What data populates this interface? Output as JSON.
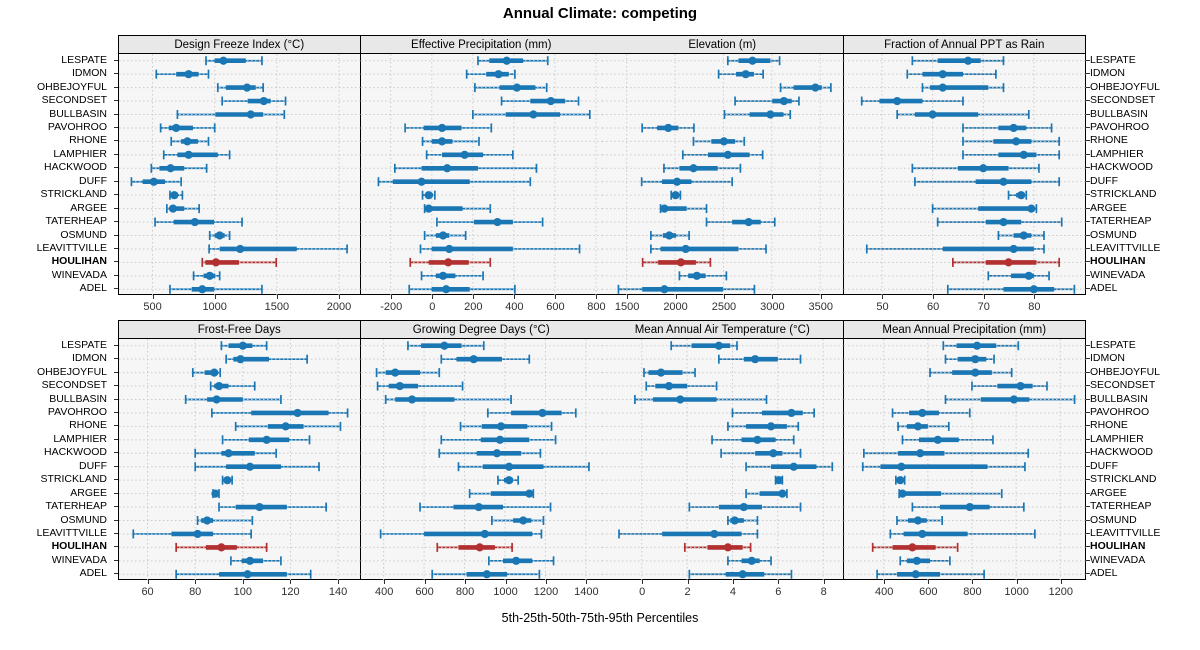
{
  "title": "Annual Climate: competing",
  "xlabel": "5th-25th-50th-75th-95th Percentiles",
  "highlight_site": "HOULIHAN",
  "colors": {
    "series": "#1b76b4",
    "highlight": "#b23030",
    "panel_bg": "#f6f6f6",
    "grid": "#cbcbcb",
    "strip_bg": "#e8e8e8",
    "border": "#000000",
    "tick_text": "#303030"
  },
  "sites": [
    "LESPATE",
    "IDMON",
    "OHBEJOYFUL",
    "SECONDSET",
    "BULLBASIN",
    "PAVOHROO",
    "RHONE",
    "LAMPHIER",
    "HACKWOOD",
    "DUFF",
    "STRICKLAND",
    "ARGEE",
    "TATERHEAP",
    "OSMUND",
    "LEAVITTVILLE",
    "HOULIHAN",
    "WINEVADA",
    "ADEL"
  ],
  "chart_data": {
    "type": "dotplot-interval",
    "percentiles": [
      5,
      25,
      50,
      75,
      95
    ],
    "grid": "dotted",
    "layout": "2 rows x 4 columns of panels, shared site axis",
    "panels": [
      {
        "title": "Design Freeze Index (°C)",
        "ticks": [
          500,
          1000,
          1500,
          2000
        ],
        "xlim": [
          230,
          2165
        ],
        "values": [
          [
            930,
            1000,
            1070,
            1250,
            1380
          ],
          [
            530,
            690,
            790,
            870,
            950
          ],
          [
            1025,
            1090,
            1260,
            1330,
            1390
          ],
          [
            1060,
            1265,
            1395,
            1450,
            1570
          ],
          [
            700,
            1005,
            1290,
            1390,
            1560
          ],
          [
            565,
            630,
            690,
            825,
            1000
          ],
          [
            650,
            730,
            780,
            865,
            950
          ],
          [
            590,
            700,
            790,
            1025,
            1120
          ],
          [
            490,
            555,
            645,
            755,
            935
          ],
          [
            330,
            420,
            510,
            600,
            730
          ],
          [
            640,
            655,
            675,
            705,
            740
          ],
          [
            615,
            635,
            665,
            755,
            875
          ],
          [
            520,
            670,
            840,
            995,
            1220
          ],
          [
            960,
            1000,
            1040,
            1080,
            1120
          ],
          [
            955,
            1040,
            1205,
            1660,
            2065
          ],
          [
            900,
            925,
            1010,
            1195,
            1495
          ],
          [
            830,
            910,
            960,
            1005,
            1040
          ],
          [
            640,
            815,
            900,
            995,
            1380
          ]
        ]
      },
      {
        "title": "Effective Precipitation (mm)",
        "ticks": [
          -200,
          0,
          200,
          400,
          600,
          800
        ],
        "xlim": [
          -345,
          827
        ],
        "values": [
          [
            225,
            280,
            365,
            445,
            565
          ],
          [
            170,
            265,
            325,
            375,
            405
          ],
          [
            210,
            330,
            415,
            505,
            560
          ],
          [
            340,
            480,
            580,
            650,
            715
          ],
          [
            200,
            360,
            495,
            625,
            770
          ],
          [
            -130,
            -40,
            50,
            145,
            290
          ],
          [
            -45,
            0,
            50,
            100,
            230
          ],
          [
            -25,
            50,
            160,
            250,
            395
          ],
          [
            -180,
            -50,
            75,
            225,
            510
          ],
          [
            -260,
            -190,
            -50,
            185,
            480
          ],
          [
            -45,
            -30,
            -15,
            5,
            15
          ],
          [
            -35,
            -25,
            -15,
            150,
            285
          ],
          [
            25,
            205,
            320,
            395,
            540
          ],
          [
            -35,
            20,
            55,
            85,
            165
          ],
          [
            -55,
            0,
            85,
            395,
            720
          ],
          [
            -105,
            -15,
            80,
            180,
            285
          ],
          [
            -50,
            20,
            55,
            115,
            250
          ],
          [
            -110,
            0,
            70,
            185,
            405
          ]
        ]
      },
      {
        "title": "Elevation (m)",
        "ticks": [
          1500,
          2000,
          2500,
          3000,
          3500
        ],
        "xlim": [
          1245,
          3730
        ],
        "values": [
          [
            2545,
            2655,
            2800,
            2985,
            3080
          ],
          [
            2450,
            2630,
            2730,
            2815,
            2910
          ],
          [
            3090,
            3225,
            3450,
            3515,
            3610
          ],
          [
            2620,
            3005,
            3125,
            3205,
            3280
          ],
          [
            2510,
            2770,
            2985,
            3120,
            3190
          ],
          [
            1660,
            1815,
            1930,
            2035,
            2195
          ],
          [
            2190,
            2375,
            2505,
            2620,
            2715
          ],
          [
            2080,
            2340,
            2545,
            2770,
            2905
          ],
          [
            1885,
            2045,
            2190,
            2440,
            2675
          ],
          [
            1655,
            1865,
            2020,
            2170,
            2590
          ],
          [
            1960,
            1990,
            2005,
            2025,
            2055
          ],
          [
            1850,
            1865,
            1890,
            2120,
            2325
          ],
          [
            2325,
            2590,
            2760,
            2885,
            3030
          ],
          [
            1750,
            1875,
            1940,
            2010,
            2145
          ],
          [
            1750,
            1850,
            2110,
            2655,
            2940
          ],
          [
            1665,
            1825,
            2060,
            2215,
            2365
          ],
          [
            2045,
            2135,
            2225,
            2315,
            2530
          ],
          [
            1415,
            1660,
            1890,
            2495,
            2820
          ]
        ]
      },
      {
        "title": "Fraction of Annual PPT as Rain",
        "ticks": [
          50,
          60,
          70,
          80
        ],
        "xlim": [
          42.5,
          90
        ],
        "values": [
          [
            56,
            61,
            67,
            69.5,
            74
          ],
          [
            55,
            58,
            62,
            66,
            72.5
          ],
          [
            58,
            59.5,
            62,
            71,
            74
          ],
          [
            46,
            49.5,
            53,
            58,
            66
          ],
          [
            53,
            56.5,
            60,
            69,
            79
          ],
          [
            66,
            73,
            76,
            78.5,
            83.5
          ],
          [
            66,
            72,
            76.5,
            79.5,
            85
          ],
          [
            66,
            73,
            78,
            80.5,
            85
          ],
          [
            56,
            65,
            70,
            75,
            81
          ],
          [
            56.5,
            68.5,
            74,
            79.5,
            85
          ],
          [
            75,
            76.5,
            77.5,
            78,
            78.5
          ],
          [
            60,
            69,
            79.5,
            80,
            80.5
          ],
          [
            61,
            70.5,
            74,
            77.5,
            85.5
          ],
          [
            73,
            76,
            78,
            79.5,
            82
          ],
          [
            47,
            62,
            76,
            80,
            82
          ],
          [
            64,
            70.5,
            75,
            80.5,
            85
          ],
          [
            71,
            75.5,
            79,
            80,
            83
          ],
          [
            63,
            74,
            80,
            84,
            88
          ]
        ]
      },
      {
        "title": "Frost-Free Days",
        "ticks": [
          60,
          80,
          100,
          120,
          140
        ],
        "xlim": [
          48,
          149
        ],
        "values": [
          [
            91,
            94,
            100,
            104,
            110
          ],
          [
            93,
            96,
            99,
            111,
            127
          ],
          [
            79,
            84,
            88,
            89.5,
            90.5
          ],
          [
            86.5,
            88,
            90,
            94,
            105
          ],
          [
            76,
            85,
            89,
            100,
            116
          ],
          [
            87,
            103.5,
            123,
            136,
            144
          ],
          [
            97,
            110.5,
            118,
            125.5,
            141
          ],
          [
            91.5,
            102.5,
            110,
            119.5,
            128
          ],
          [
            80,
            91,
            94,
            105,
            114
          ],
          [
            80,
            93,
            103,
            116,
            132
          ],
          [
            91.5,
            92.5,
            93.5,
            94.5,
            95.5
          ],
          [
            87.5,
            88,
            88.5,
            89.5,
            90
          ],
          [
            90,
            97,
            107,
            118.5,
            135
          ],
          [
            81,
            82.5,
            85,
            87.5,
            104
          ],
          [
            54,
            70,
            81,
            87.5,
            103.5
          ],
          [
            72,
            84.5,
            91,
            97.5,
            110
          ],
          [
            95,
            99.5,
            103,
            108.5,
            116
          ],
          [
            72,
            90,
            102,
            118.5,
            128.5
          ]
        ]
      },
      {
        "title": "Growing Degree Days (°C)",
        "ticks": [
          400,
          600,
          800,
          1000,
          1200,
          1400
        ],
        "xlim": [
          288,
          1477
        ],
        "values": [
          [
            520,
            585,
            700,
            785,
            895
          ],
          [
            685,
            760,
            845,
            985,
            1120
          ],
          [
            365,
            410,
            457,
            580,
            675
          ],
          [
            370,
            425,
            480,
            570,
            790
          ],
          [
            410,
            457,
            540,
            750,
            1030
          ],
          [
            915,
            1030,
            1185,
            1280,
            1350
          ],
          [
            780,
            885,
            980,
            1110,
            1230
          ],
          [
            685,
            880,
            975,
            1120,
            1250
          ],
          [
            675,
            860,
            960,
            1080,
            1175
          ],
          [
            770,
            890,
            1020,
            1190,
            1415
          ],
          [
            965,
            995,
            1020,
            1040,
            1065
          ],
          [
            825,
            930,
            1120,
            1130,
            1140
          ],
          [
            580,
            745,
            870,
            990,
            1225
          ],
          [
            935,
            1040,
            1090,
            1130,
            1190
          ],
          [
            385,
            600,
            900,
            1135,
            1180
          ],
          [
            665,
            770,
            875,
            950,
            1035
          ],
          [
            920,
            990,
            1055,
            1135,
            1240
          ],
          [
            640,
            810,
            910,
            1010,
            1170
          ]
        ]
      },
      {
        "title": "Mean Annual Air Temperature (°C)",
        "ticks": [
          0,
          2,
          4,
          6,
          8
        ],
        "xlim": [
          -1.75,
          8.85
        ],
        "values": [
          [
            1.3,
            2.2,
            3.4,
            3.9,
            4.2
          ],
          [
            3.4,
            4.5,
            5.0,
            6.0,
            7.0
          ],
          [
            0.1,
            0.3,
            0.85,
            1.8,
            2.35
          ],
          [
            0.2,
            0.6,
            1.2,
            2.0,
            3.3
          ],
          [
            -0.3,
            0.5,
            1.7,
            3.3,
            5.5
          ],
          [
            4.0,
            5.3,
            6.6,
            7.1,
            7.6
          ],
          [
            3.8,
            4.6,
            5.7,
            6.4,
            6.9
          ],
          [
            3.1,
            4.4,
            5.1,
            5.9,
            6.7
          ],
          [
            3.5,
            5.0,
            5.8,
            6.2,
            7.0
          ],
          [
            4.6,
            5.7,
            6.7,
            7.7,
            8.4
          ],
          [
            5.9,
            5.95,
            6.05,
            6.15,
            6.2
          ],
          [
            4.6,
            5.2,
            6.2,
            6.3,
            6.4
          ],
          [
            2.1,
            3.4,
            4.5,
            5.3,
            7.0
          ],
          [
            3.8,
            3.9,
            4.1,
            4.5,
            5.1
          ],
          [
            -1.0,
            0.9,
            3.2,
            4.4,
            5.1
          ],
          [
            1.9,
            2.9,
            3.8,
            4.45,
            4.8
          ],
          [
            3.8,
            4.4,
            4.85,
            5.2,
            5.7
          ],
          [
            2.1,
            3.7,
            4.45,
            5.4,
            6.6
          ]
        ]
      },
      {
        "title": "Mean Annual Precipitation (mm)",
        "ticks": [
          400,
          600,
          800,
          1000,
          1200
        ],
        "xlim": [
          220,
          1310
        ],
        "values": [
          [
            670,
            730,
            823,
            910,
            1010
          ],
          [
            680,
            735,
            815,
            865,
            900
          ],
          [
            610,
            710,
            815,
            890,
            980
          ],
          [
            800,
            915,
            1020,
            1075,
            1140
          ],
          [
            680,
            840,
            990,
            1060,
            1265
          ],
          [
            440,
            515,
            575,
            650,
            790
          ],
          [
            465,
            505,
            555,
            600,
            695
          ],
          [
            485,
            560,
            645,
            740,
            895
          ],
          [
            310,
            465,
            565,
            675,
            1055
          ],
          [
            305,
            385,
            480,
            870,
            1040
          ],
          [
            455,
            465,
            475,
            487,
            495
          ],
          [
            470,
            475,
            485,
            660,
            935
          ],
          [
            530,
            655,
            790,
            880,
            1035
          ],
          [
            460,
            510,
            555,
            595,
            665
          ],
          [
            430,
            490,
            575,
            780,
            1085
          ],
          [
            350,
            440,
            530,
            635,
            735
          ],
          [
            475,
            505,
            550,
            610,
            700
          ],
          [
            370,
            460,
            545,
            655,
            855
          ]
        ]
      }
    ]
  }
}
